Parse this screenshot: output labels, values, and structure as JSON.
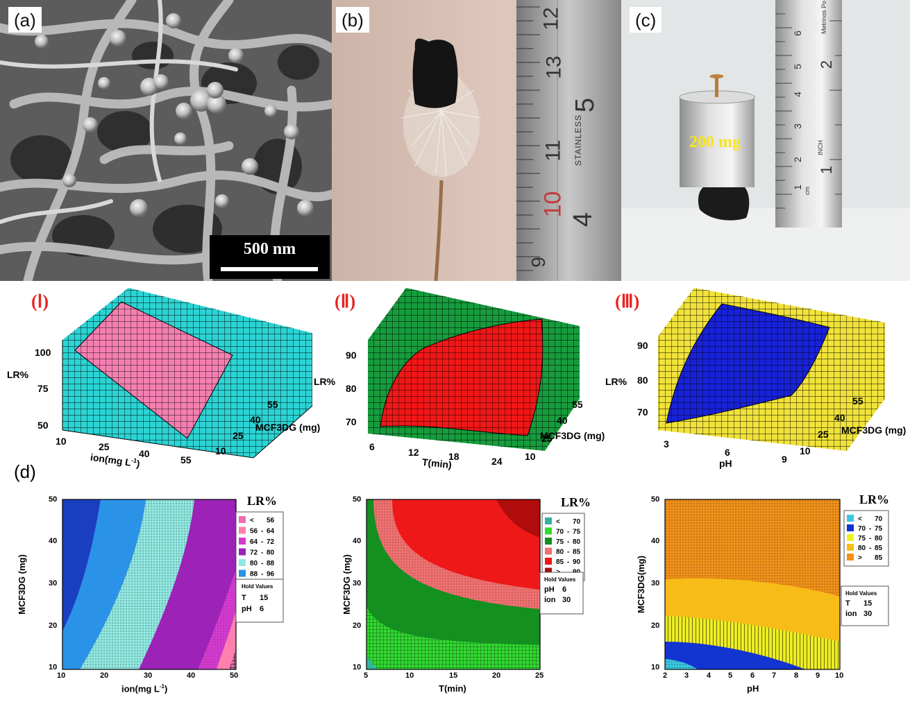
{
  "panels": {
    "a": {
      "label": "(a)",
      "scale_bar": "500 nm"
    },
    "b": {
      "label": "(b)",
      "ruler": {
        "numbers": [
          "12",
          "13",
          "11",
          "10",
          "9"
        ],
        "cm": [
          "5",
          "4"
        ],
        "brand": "STAINLESS"
      }
    },
    "c": {
      "label": "(c)",
      "weight": "200 mg",
      "ruler": {
        "cm": [
          "6",
          "5",
          "4",
          "3",
          "2",
          "1"
        ],
        "in": [
          "2",
          "1"
        ],
        "texts": [
          "Metrinos Po",
          "INCH",
          "cm"
        ]
      }
    },
    "d": {
      "label": "(d)"
    }
  },
  "surface_plots": [
    {
      "label": "(Ⅰ)",
      "z_label": "LR%",
      "z_ticks": [
        "100",
        "75",
        "50"
      ],
      "x_label_main": "ion(mg L",
      "x_label_sup": "-1",
      "x_label_end": ")",
      "x_ticks": [
        "10",
        "25",
        "40",
        "55"
      ],
      "y_label": "MCF3DG (mg)",
      "y_ticks": [
        "55",
        "40",
        "25",
        "10"
      ],
      "colors": {
        "box": "#2bd4d4",
        "surface": "#f47fb0"
      }
    },
    {
      "label": "(Ⅱ)",
      "z_label": "LR%",
      "z_ticks": [
        "90",
        "80",
        "70"
      ],
      "x_label_main": "T(min)",
      "x_label_sup": "",
      "x_label_end": "",
      "x_ticks": [
        "6",
        "12",
        "18",
        "24"
      ],
      "y_label": "MCF3DG (mg)",
      "y_ticks": [
        "55",
        "40",
        "25",
        "10"
      ],
      "colors": {
        "box": "#169c3c",
        "surface": "#f01717"
      }
    },
    {
      "label": "(Ⅲ)",
      "z_label": "LR%",
      "z_ticks": [
        "90",
        "80",
        "70"
      ],
      "x_label_main": "pH",
      "x_label_sup": "",
      "x_label_end": "",
      "x_ticks": [
        "3",
        "6",
        "9"
      ],
      "y_label": "MCF3DG (mg)",
      "y_ticks": [
        "55",
        "40",
        "25",
        "10"
      ],
      "colors": {
        "box": "#f0e23a",
        "surface": "#1822d8"
      }
    }
  ],
  "chart_data": [
    {
      "type": "heatmap",
      "subtype": "contour",
      "xlabel_main": "ion(mg L",
      "xlabel_sup": "-1",
      "xlabel_end": ")",
      "ylabel": "MCF3DG (mg)",
      "xlim": [
        10,
        50
      ],
      "ylim": [
        10,
        50
      ],
      "x_ticks": [
        "10",
        "20",
        "30",
        "40",
        "50"
      ],
      "y_ticks": [
        "50",
        "40",
        "30",
        "20",
        "10"
      ],
      "legend_title": "LR%",
      "legend": [
        {
          "range": [
            "<",
            "56"
          ],
          "color": "#f06cb0"
        },
        {
          "range": [
            "56",
            "64"
          ],
          "color": "#ff7fae"
        },
        {
          "range": [
            "64",
            "72"
          ],
          "color": "#d43ad0"
        },
        {
          "range": [
            "72",
            "80"
          ],
          "color": "#9c22b8"
        },
        {
          "range": [
            "80",
            "88"
          ],
          "color": "#8fe8e0"
        },
        {
          "range": [
            "88",
            "96"
          ],
          "color": "#2a93e8"
        },
        {
          "range": [
            ">",
            "96"
          ],
          "color": "#1a3fc0"
        }
      ],
      "hold_title": "Hold Values",
      "hold_values": [
        {
          "name": "T",
          "value": "15"
        },
        {
          "name": "pH",
          "value": "6"
        }
      ]
    },
    {
      "type": "heatmap",
      "subtype": "contour",
      "xlabel_main": "T(min)",
      "xlabel_sup": "",
      "xlabel_end": "",
      "ylabel": "MCF3DG (mg)",
      "xlim": [
        5,
        25
      ],
      "ylim": [
        10,
        50
      ],
      "x_ticks": [
        "5",
        "10",
        "15",
        "20",
        "25"
      ],
      "y_ticks": [
        "50",
        "40",
        "30",
        "20",
        "10"
      ],
      "legend_title": "LR%",
      "legend": [
        {
          "range": [
            "<",
            "70"
          ],
          "color": "#2fb4a0"
        },
        {
          "range": [
            "70",
            "75"
          ],
          "color": "#2edc2e"
        },
        {
          "range": [
            "75",
            "80"
          ],
          "color": "#139020"
        },
        {
          "range": [
            "80",
            "85"
          ],
          "color": "#f07070"
        },
        {
          "range": [
            "85",
            "90"
          ],
          "color": "#ee1818"
        },
        {
          "range": [
            ">",
            "90"
          ],
          "color": "#b00c0c"
        }
      ],
      "hold_title": "Hold Values",
      "hold_values": [
        {
          "name": "pH",
          "value": "6"
        },
        {
          "name": "ion",
          "value": "30"
        }
      ]
    },
    {
      "type": "heatmap",
      "subtype": "contour",
      "xlabel_main": "pH",
      "xlabel_sup": "",
      "xlabel_end": "",
      "ylabel": "MCF3DG(mg)",
      "xlim": [
        2,
        10
      ],
      "ylim": [
        10,
        50
      ],
      "x_ticks": [
        "2",
        "3",
        "4",
        "5",
        "6",
        "7",
        "8",
        "9",
        "10"
      ],
      "y_ticks": [
        "50",
        "40",
        "30",
        "20",
        "10"
      ],
      "legend_title": "LR%",
      "legend": [
        {
          "range": [
            "<",
            "70"
          ],
          "color": "#38c8e0"
        },
        {
          "range": [
            "70",
            "75"
          ],
          "color": "#1234d0"
        },
        {
          "range": [
            "75",
            "80"
          ],
          "color": "#f0f020"
        },
        {
          "range": [
            "80",
            "85"
          ],
          "color": "#f8bc18"
        },
        {
          "range": [
            ">",
            "85"
          ],
          "color": "#f09018"
        }
      ],
      "hold_title": "Hold Values",
      "hold_values": [
        {
          "name": "T",
          "value": "15"
        },
        {
          "name": "ion",
          "value": "30"
        }
      ]
    }
  ]
}
